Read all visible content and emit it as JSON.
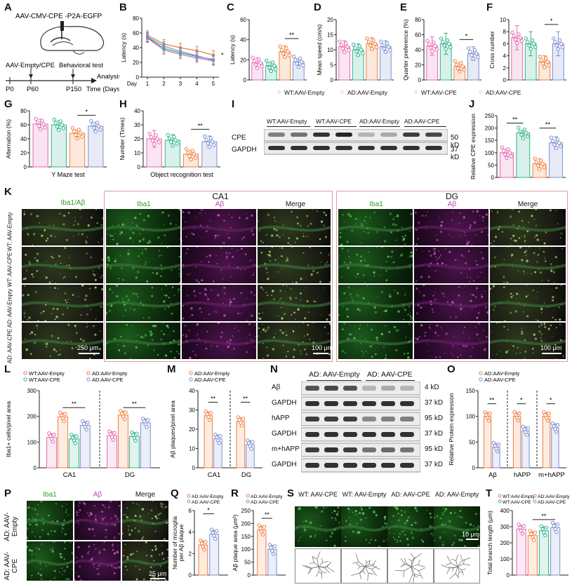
{
  "panels": [
    "A",
    "B",
    "C",
    "D",
    "E",
    "F",
    "G",
    "H",
    "I",
    "J",
    "K",
    "L",
    "M",
    "N",
    "O",
    "P",
    "Q",
    "R",
    "S",
    "T"
  ],
  "panelA": {
    "construct": "AAV-CMV-CPE -P2A-EGFP",
    "event1": "AAV-Empty/CPE",
    "event2": "Behavioral test",
    "event3": "Analysis",
    "t0": "P0",
    "t1": "P60",
    "t2": "P150",
    "axis": "Time (Days)"
  },
  "colors": {
    "wt_empty": "#e36ab2",
    "ad_empty": "#f07e3d",
    "wt_cpe": "#2fb38a",
    "ad_cpe": "#7d8fce",
    "iba1": "#33cc33",
    "abeta": "#cc33cc"
  },
  "legend_behavior": {
    "wt_empty": "WT:AAV-Empty",
    "ad_empty": "AD:AAV-Empty",
    "wt_cpe": "WT:AAV-CPE",
    "ad_cpe": "AD:AAV-CPE"
  },
  "chart_data": [
    {
      "id": "B",
      "type": "line",
      "ylabel": "Latency (s)",
      "xlabel": "Day",
      "x": [
        1,
        2,
        3,
        4,
        5
      ],
      "ylim": [
        0,
        80
      ],
      "yticks": [
        0,
        20,
        40,
        60,
        80
      ],
      "series": [
        {
          "name": "WT:AAV-Empty",
          "values": [
            53,
            37,
            31,
            26,
            22
          ]
        },
        {
          "name": "AD:AAV-Empty",
          "values": [
            57,
            45,
            40,
            36,
            30
          ]
        },
        {
          "name": "WT:AAV-CPE",
          "values": [
            54,
            39,
            33,
            28,
            24
          ]
        },
        {
          "name": "AD:AAV-CPE",
          "values": [
            55,
            42,
            35,
            29,
            23
          ]
        }
      ],
      "annotation": "*"
    },
    {
      "id": "C",
      "type": "bar",
      "ylabel": "Latency (s)",
      "ylim": [
        0,
        60
      ],
      "yticks": [
        0,
        20,
        40,
        60
      ],
      "values": [
        17,
        14,
        28,
        18
      ],
      "errors": [
        5,
        4,
        6,
        3
      ],
      "sig": [
        "**"
      ]
    },
    {
      "id": "D",
      "type": "bar",
      "ylabel": "Mean speed (cm/s)",
      "ylim": [
        0,
        20
      ],
      "yticks": [
        0,
        5,
        10,
        15,
        20
      ],
      "values": [
        11,
        10,
        12,
        11
      ],
      "errors": [
        2,
        2,
        2,
        2
      ]
    },
    {
      "id": "E",
      "type": "bar",
      "ylabel": "Quarter preference (%)",
      "ylim": [
        0,
        80
      ],
      "yticks": [
        0,
        20,
        40,
        60,
        80
      ],
      "values": [
        45,
        48,
        18,
        35
      ],
      "errors": [
        12,
        14,
        5,
        9
      ],
      "sig": [
        "*"
      ]
    },
    {
      "id": "F",
      "type": "bar",
      "ylabel": "Cross number",
      "ylim": [
        0,
        10
      ],
      "yticks": [
        0,
        2,
        4,
        6,
        8,
        10
      ],
      "values": [
        7,
        6,
        3,
        6
      ],
      "errors": [
        2,
        2,
        1,
        2
      ],
      "sig": [
        "*"
      ]
    },
    {
      "id": "G",
      "type": "bar",
      "ylabel": "Alternation (%)",
      "xlabel": "Y Maze test",
      "ylim": [
        0,
        80
      ],
      "yticks": [
        0,
        20,
        40,
        60,
        80
      ],
      "values": [
        61,
        60,
        48,
        58
      ],
      "errors": [
        7,
        6,
        5,
        6
      ],
      "sig": [
        "*"
      ]
    },
    {
      "id": "H",
      "type": "bar",
      "ylabel": "Number (Times)",
      "xlabel": "Object recognition test",
      "ylim": [
        0,
        40
      ],
      "yticks": [
        0,
        10,
        20,
        30,
        40
      ],
      "values": [
        20,
        19,
        9,
        18
      ],
      "errors": [
        6,
        4,
        3,
        4
      ],
      "sig": [
        "**"
      ]
    },
    {
      "id": "J",
      "type": "bar",
      "ylabel": "Relative CPE expression",
      "ylim": [
        0,
        250
      ],
      "yticks": [
        0,
        50,
        100,
        150,
        200,
        250
      ],
      "values": [
        100,
        180,
        55,
        140
      ],
      "errors": [
        15,
        10,
        20,
        25
      ],
      "sig": [
        "**",
        "**"
      ]
    },
    {
      "id": "L",
      "type": "bar",
      "ylabel": "Iba1+ cells/pixel area",
      "ylim": [
        0,
        300
      ],
      "yticks": [
        0,
        100,
        200,
        300
      ],
      "categories": [
        "CA1",
        "DG"
      ],
      "series": [
        {
          "name": "WT:AAV-Empty",
          "values": [
            118,
            125
          ]
        },
        {
          "name": "AD:AAV-Empty",
          "values": [
            198,
            205
          ]
        },
        {
          "name": "WT:AAV-CPE",
          "values": [
            112,
            122
          ]
        },
        {
          "name": "AD:AAV-CPE",
          "values": [
            165,
            175
          ]
        }
      ],
      "sig": [
        "**",
        "**"
      ]
    },
    {
      "id": "M",
      "type": "bar",
      "ylabel": "Aβ plaques/pixel area",
      "ylim": [
        0,
        40
      ],
      "yticks": [
        0,
        10,
        20,
        30,
        40
      ],
      "categories": [
        "CA1",
        "DG"
      ],
      "series": [
        {
          "name": "AD:AAV-Empty",
          "values": [
            27,
            24
          ]
        },
        {
          "name": "AD:AAV-CPE",
          "values": [
            15,
            12
          ]
        }
      ],
      "sig": [
        "**",
        "**"
      ]
    },
    {
      "id": "O",
      "type": "bar",
      "ylabel": "Relative Protein expression",
      "ylim": [
        0,
        150
      ],
      "yticks": [
        0,
        50,
        100,
        150
      ],
      "categories": [
        "Aβ",
        "hAPP",
        "m+hAPP"
      ],
      "series": [
        {
          "name": "AD:AAV-Empty",
          "values": [
            100,
            100,
            100
          ]
        },
        {
          "name": "AD:AAV-CPE",
          "values": [
            40,
            72,
            78
          ]
        }
      ],
      "sig": [
        "**",
        "*",
        "*"
      ]
    },
    {
      "id": "Q",
      "type": "bar",
      "ylabel": "Number of microglia per Aβ plaque",
      "ylim": [
        0,
        6
      ],
      "yticks": [
        0,
        2,
        4,
        6
      ],
      "series": [
        {
          "name": "AD:AAV-Empty",
          "values": [
            2.8
          ]
        },
        {
          "name": "AD:AAV-CPE",
          "values": [
            3.8
          ]
        }
      ],
      "sig": [
        "*"
      ]
    },
    {
      "id": "R",
      "type": "bar",
      "ylabel": "Aβ plaque area (μm²)",
      "ylim": [
        0,
        250
      ],
      "yticks": [
        0,
        50,
        100,
        150,
        200,
        250
      ],
      "series": [
        {
          "name": "AD:AAV-Empty",
          "values": [
            175
          ]
        },
        {
          "name": "AD:AAV-CPE",
          "values": [
            100
          ]
        }
      ],
      "sig": [
        "**"
      ]
    },
    {
      "id": "T",
      "type": "bar",
      "ylabel": "Total branch length (μm)",
      "ylim": [
        0,
        400
      ],
      "yticks": [
        0,
        100,
        200,
        300,
        400
      ],
      "series": [
        {
          "name": "WT:AAV-Empty",
          "values": [
            285
          ]
        },
        {
          "name": "AD:AAV-Empty",
          "values": [
            245
          ]
        },
        {
          "name": "WT:AAV-CPE",
          "values": [
            275
          ]
        },
        {
          "name": "AD:AAV-CPE",
          "values": [
            295
          ]
        }
      ],
      "sig": [
        "**"
      ]
    }
  ],
  "blotI": {
    "groups": [
      "WT:AAV-Empty",
      "WT:AAV-CPE",
      "AD:AAV-Empty",
      "AD:AAV-CPE"
    ],
    "rows": [
      {
        "label": "CPE",
        "kd": "50 kD"
      },
      {
        "label": "GAPDH",
        "kd": "37 kD"
      }
    ]
  },
  "panelK": {
    "col1": "Iba1/Aβ",
    "ca1": "CA1",
    "dg": "DG",
    "iba1": "Iba1",
    "abeta": "Aβ",
    "merge": "Merge",
    "rows": [
      "WT: AAV-Empty",
      "WT: AAV-CPE",
      "AD: AAV-Empty",
      "AD: AAV-CPE"
    ],
    "scale1": "250 μm",
    "scale2": "100 μm",
    "scale3": "100 μm"
  },
  "legendL": [
    "WT:AAV-Empty",
    "AD:AAV-Empty",
    "WT:AAV-CPE",
    "AD:AAV-CPE"
  ],
  "legendAD": [
    "AD:AAV-Empty",
    "AD:AAV-CPE"
  ],
  "blotN": {
    "groups": [
      "AD: AAV-Empty",
      "AD: AAV-CPE"
    ],
    "rows": [
      {
        "label": "Aβ",
        "kd": "4 kD"
      },
      {
        "label": "GAPDH",
        "kd": "37 kD"
      },
      {
        "label": "hAPP",
        "kd": "95 kD"
      },
      {
        "label": "GAPDH",
        "kd": "37 kD"
      },
      {
        "label": "m+hAPP",
        "kd": "95 kD"
      },
      {
        "label": "GAPDH",
        "kd": "37 kD"
      }
    ]
  },
  "panelP": {
    "iba1": "Iba1",
    "abeta": "Aβ",
    "merge": "Merge",
    "rows": [
      "AD: AAV-Empty",
      "AD: AAV-CPE"
    ],
    "scale": "25 μm"
  },
  "panelS": {
    "cols": [
      "WT: AAV-CPE",
      "WT: AAV-Empty",
      "AD: AAV-CPE",
      "AD: AAV-Empty"
    ],
    "scale": "10 μm"
  }
}
